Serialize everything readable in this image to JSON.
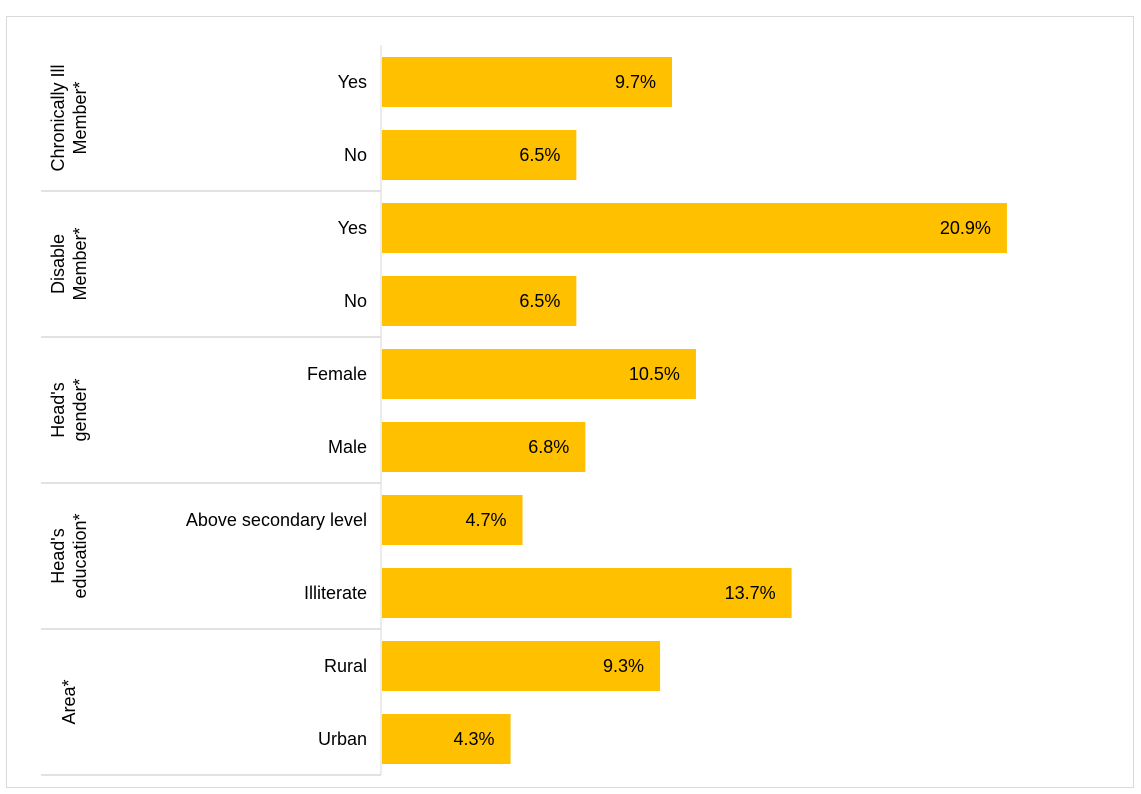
{
  "chart_data": {
    "type": "bar",
    "orientation": "horizontal",
    "bar_color": "#ffc000",
    "groups": [
      {
        "label_lines": [
          "Chronically Ill",
          "Member*"
        ],
        "categories": [
          "Yes",
          "No"
        ],
        "values": [
          9.7,
          6.5
        ],
        "value_labels": [
          "9.7%",
          "6.5%"
        ]
      },
      {
        "label_lines": [
          "Disable",
          "Member*"
        ],
        "categories": [
          "Yes",
          "No"
        ],
        "values": [
          20.9,
          6.5
        ],
        "value_labels": [
          "20.9%",
          "6.5%"
        ]
      },
      {
        "label_lines": [
          "Head's",
          "gender*"
        ],
        "categories": [
          "Female",
          "Male"
        ],
        "values": [
          10.5,
          6.8
        ],
        "value_labels": [
          "10.5%",
          "6.8%"
        ]
      },
      {
        "label_lines": [
          "Head's",
          "education*"
        ],
        "categories": [
          "Above secondary level",
          "Illiterate"
        ],
        "values": [
          4.7,
          13.7
        ],
        "value_labels": [
          "4.7%",
          "13.7%"
        ]
      },
      {
        "label_lines": [
          "Area*"
        ],
        "categories": [
          "Rural",
          "Urban"
        ],
        "values": [
          9.3,
          4.3
        ],
        "value_labels": [
          "9.3%",
          "4.3%"
        ]
      }
    ],
    "xlim": [
      0,
      25
    ],
    "grid": false,
    "legend": "none"
  }
}
